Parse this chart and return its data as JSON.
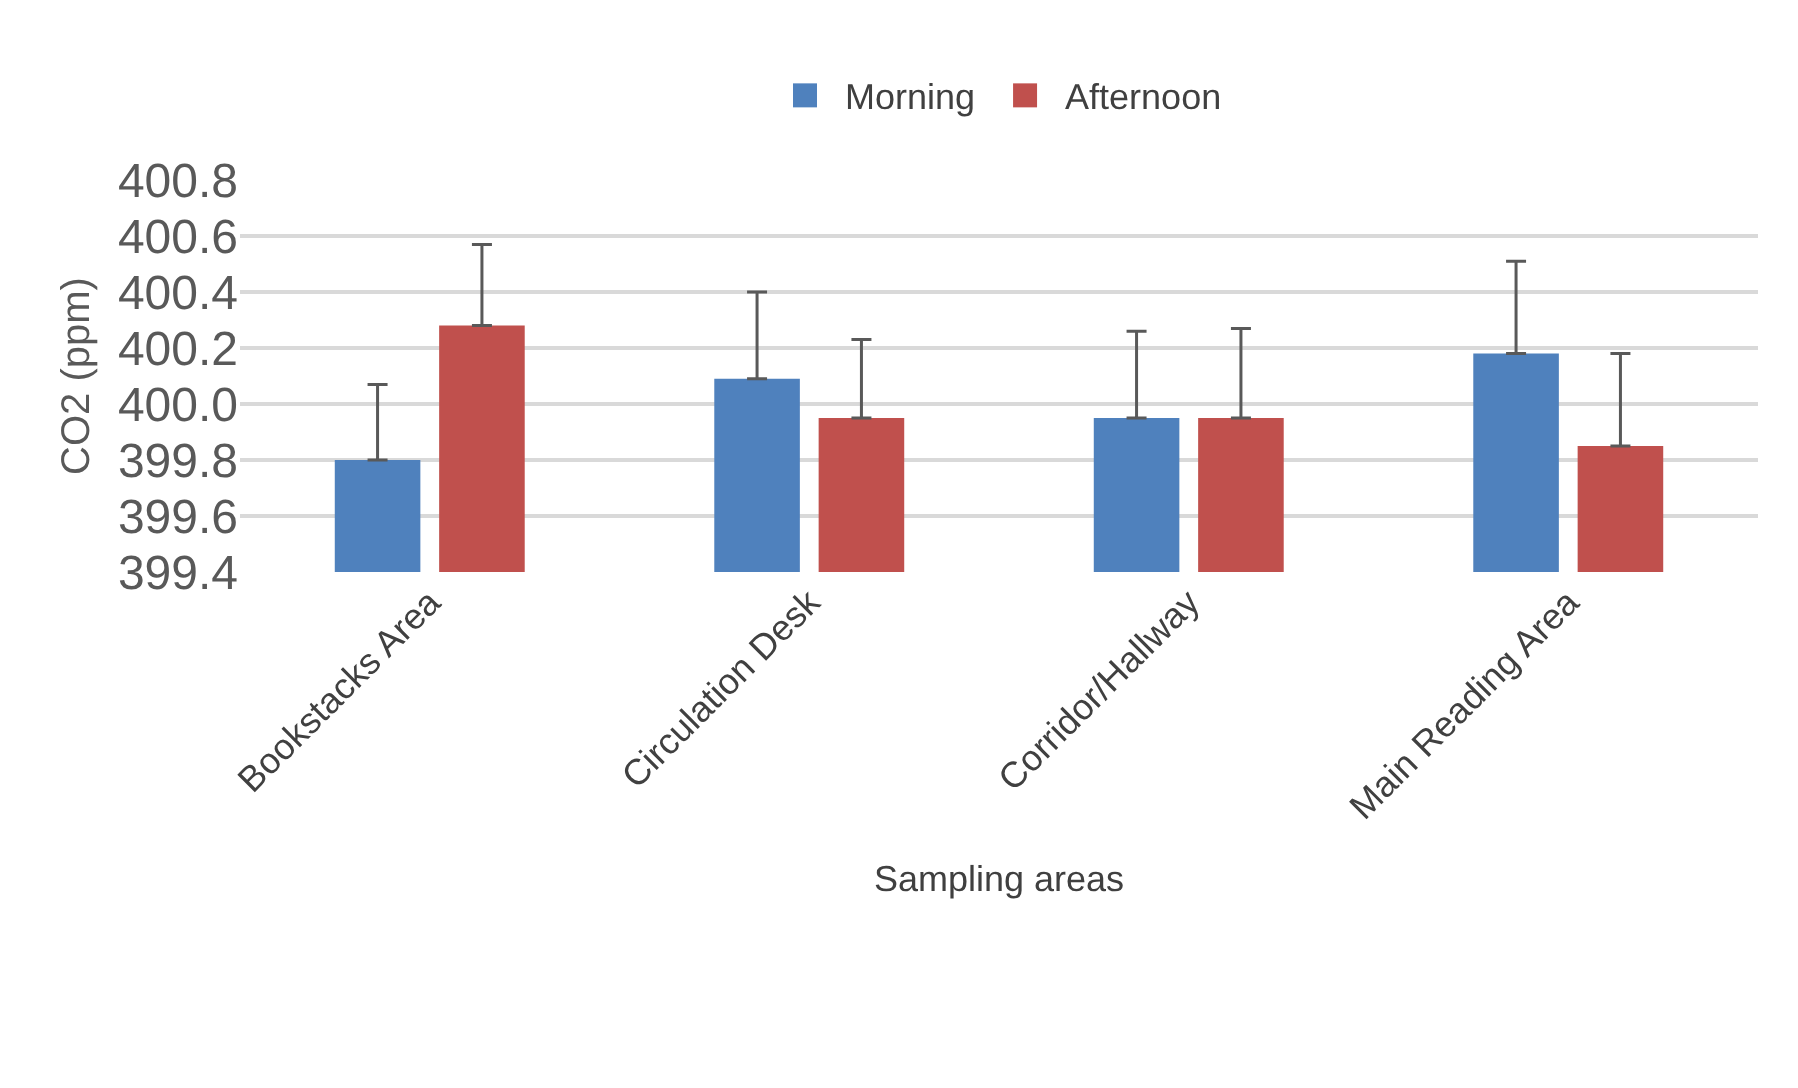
{
  "chart_data": {
    "type": "bar",
    "xlabel": "Sampling areas",
    "ylabel": "CO2 (ppm)",
    "categories": [
      "Bookstacks Area",
      "Circulation Desk",
      "Corridor/Hallway",
      "Main Reading Area"
    ],
    "series": [
      {
        "name": "Morning",
        "color": "#4f81bd",
        "values": [
          399.8,
          400.09,
          399.95,
          400.18
        ],
        "errors": [
          [
            399.8,
            400.07
          ],
          [
            400.09,
            400.4
          ],
          [
            399.95,
            400.26
          ],
          [
            400.18,
            400.51
          ]
        ]
      },
      {
        "name": "Afternoon",
        "color": "#c0504d",
        "values": [
          400.28,
          399.95,
          399.95,
          399.85
        ],
        "errors": [
          [
            400.28,
            400.57
          ],
          [
            399.95,
            400.23
          ],
          [
            399.95,
            400.27
          ],
          [
            399.85,
            400.18
          ]
        ]
      }
    ],
    "ylim": [
      399.4,
      400.8
    ],
    "yticks": [
      {
        "value": 399.4,
        "label": "399.4"
      },
      {
        "value": 399.6,
        "label": "399.6"
      },
      {
        "value": 399.8,
        "label": "399.8"
      },
      {
        "value": 400.0,
        "label": "400.0"
      },
      {
        "value": 400.2,
        "label": "400.2"
      },
      {
        "value": 400.4,
        "label": "400.4"
      },
      {
        "value": 400.6,
        "label": "400.6"
      },
      {
        "value": 400.8,
        "label": "400.8"
      }
    ],
    "grid": "y",
    "legend": "top"
  }
}
